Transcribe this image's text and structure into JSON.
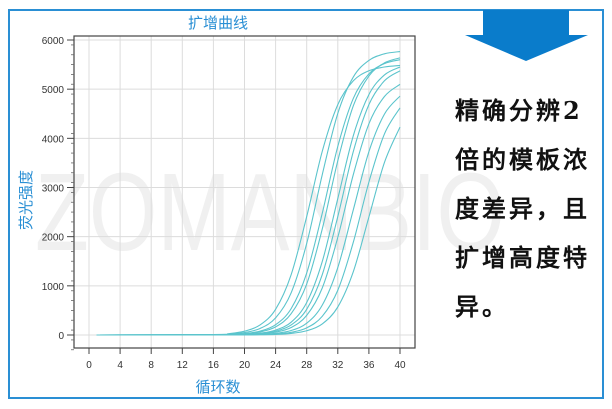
{
  "chart_data": {
    "type": "line",
    "title": "扩增曲线",
    "xlabel": "循环数",
    "ylabel": "荧光强度",
    "xlim": [
      0,
      40
    ],
    "ylim": [
      -300,
      6000
    ],
    "xticks": [
      "0",
      "4",
      "8",
      "12",
      "16",
      "20",
      "24",
      "28",
      "32",
      "36",
      "40"
    ],
    "yticks": [
      "0",
      "1000",
      "2000",
      "3000",
      "4000",
      "5000",
      "6000"
    ],
    "grid": true,
    "line_color": "#5bc4cc",
    "x": [
      1,
      16,
      18,
      20,
      22,
      24,
      26,
      28,
      30,
      32,
      34,
      36,
      38,
      40
    ],
    "series": [
      {
        "values": [
          0,
          10,
          28,
          77,
          204,
          523,
          1227,
          2409,
          3735,
          4686,
          5170,
          5374,
          5451,
          5482
        ]
      },
      {
        "values": [
          0,
          6,
          18,
          50,
          133,
          348,
          858,
          1862,
          3260,
          4507,
          5249,
          5585,
          5719,
          5765
        ]
      },
      {
        "values": [
          0,
          4,
          11,
          30,
          79,
          209,
          537,
          1260,
          2475,
          3836,
          4814,
          5311,
          5520,
          5599
        ]
      },
      {
        "values": [
          0,
          3,
          9,
          23,
          63,
          165,
          433,
          1037,
          2155,
          3545,
          4663,
          5267,
          5535,
          5637
        ]
      },
      {
        "values": [
          0,
          2,
          5,
          14,
          37,
          100,
          261,
          660,
          1493,
          2775,
          4057,
          4890,
          5289,
          5450
        ]
      },
      {
        "values": [
          0,
          1,
          4,
          11,
          28,
          77,
          204,
          523,
          1227,
          2409,
          3735,
          4686,
          5170,
          5374
        ]
      },
      {
        "values": [
          0,
          1,
          3,
          8,
          21,
          58,
          152,
          399,
          956,
          1985,
          3266,
          4295,
          4851,
          5098
        ]
      },
      {
        "values": [
          0,
          0,
          2,
          5,
          13,
          34,
          92,
          240,
          607,
          1372,
          2550,
          3728,
          4493,
          4860
        ]
      },
      {
        "values": [
          0,
          0,
          1,
          3,
          8,
          20,
          55,
          145,
          380,
          910,
          1890,
          3110,
          4090,
          4620
        ]
      },
      {
        "values": [
          0,
          0,
          1,
          2,
          5,
          12,
          32,
          86,
          226,
          571,
          1291,
          2400,
          3509,
          4229
        ]
      }
    ]
  },
  "watermark": "ZOMANBIO",
  "side_text": [
    "精确分辨2",
    "倍的模板浓",
    "度差异，且",
    "扩增高度特",
    "异。"
  ],
  "colors": {
    "accent": "#2a8fd4",
    "arrow": "#0a7ccb",
    "curve": "#5bc4cc"
  },
  "icons": {
    "arrow": "arrow-down-icon"
  }
}
